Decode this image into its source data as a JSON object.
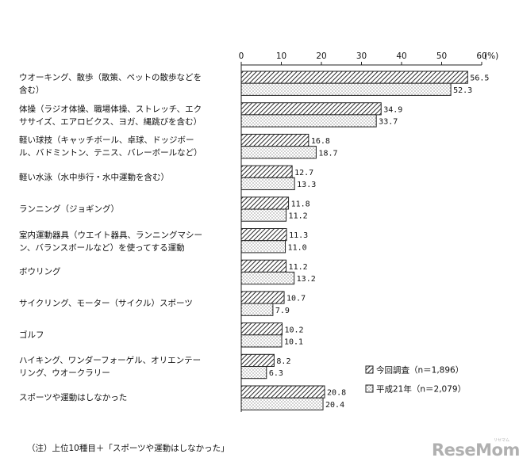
{
  "chart_data": {
    "type": "bar",
    "orientation": "horizontal",
    "title": "",
    "xlabel": "",
    "ylabel": "",
    "unit_label": "(%)",
    "xlim": [
      0,
      60
    ],
    "x_ticks": [
      0,
      10,
      20,
      30,
      40,
      50,
      60
    ],
    "categories": [
      "ウオーキング、散歩（散策、ペットの散歩などを含む）",
      "体操（ラジオ体操、職場体操、ストレッチ、エクササイズ、エアロビクス、ヨガ、縄跳びを含む）",
      "軽い球技（キャッチボール、卓球、ドッジボール、バドミントン、テニス、バレーボールなど）",
      "軽い水泳（水中歩行・水中運動を含む）",
      "ランニング（ジョギング）",
      "室内運動器具（ウエイト器具、ランニングマシーン、バランスボールなど）を使ってする運動",
      "ボウリング",
      "サイクリング、モーター（サイクル）スポーツ",
      "ゴルフ",
      "ハイキング、ワンダーフォーゲル、オリエンテーリング、ウオークラリー",
      "スポーツや運動はしなかった"
    ],
    "series": [
      {
        "name": "今回調査（n＝1,896）",
        "pattern": "diagonal-hatch",
        "values": [
          56.5,
          34.9,
          16.8,
          12.7,
          11.8,
          11.3,
          11.2,
          10.7,
          10.2,
          8.2,
          20.8
        ],
        "value_labels": [
          "56.5",
          "34.9",
          "16.8",
          "12.7",
          "11.8",
          "11.3",
          "11.2",
          "10.7",
          "10.2",
          "8.2",
          "20.8"
        ]
      },
      {
        "name": "平成21年（n＝2,079）",
        "pattern": "dots",
        "values": [
          52.3,
          33.7,
          18.7,
          13.3,
          11.2,
          11.0,
          13.2,
          7.9,
          10.1,
          6.3,
          20.4
        ],
        "value_labels": [
          "52.3",
          "33.7",
          "18.7",
          "13.3",
          "11.2",
          "11.0",
          "13.2",
          "7.9",
          "10.1",
          "6.3",
          "20.4"
        ]
      }
    ],
    "legend_position": "bottom-right",
    "grid": false,
    "colors": {
      "bar_fill": "#ffffff",
      "bar_stroke": "#222222",
      "text": "#111111"
    }
  },
  "category_lines": [
    [
      "ウオーキング、散歩（散策、ペットの散歩などを",
      "含む）"
    ],
    [
      "体操（ラジオ体操、職場体操、ストレッチ、エク",
      "ササイズ、エアロビクス、ヨガ、縄跳びを含む）"
    ],
    [
      "軽い球技（キャッチボール、卓球、ドッジボー",
      "ル、バドミントン、テニス、バレーボールなど）"
    ],
    [
      "軽い水泳（水中歩行・水中運動を含む）"
    ],
    [
      "ランニング（ジョギング）"
    ],
    [
      "室内運動器具（ウエイト器具、ランニングマシー",
      "ン、バランスボールなど）を使ってする運動"
    ],
    [
      "ボウリング"
    ],
    [
      "サイクリング、モーター（サイクル）スポーツ"
    ],
    [
      "ゴルフ"
    ],
    [
      "ハイキング、ワンダーフォーゲル、オリエンテー",
      "リング、ウオークラリー"
    ],
    [
      "スポーツや運動はしなかった"
    ]
  ],
  "note": "（注）上位10種目＋「スポーツや運動はしなかった」",
  "watermark": {
    "text": "ReseMom",
    "small_text": "リセマム"
  }
}
